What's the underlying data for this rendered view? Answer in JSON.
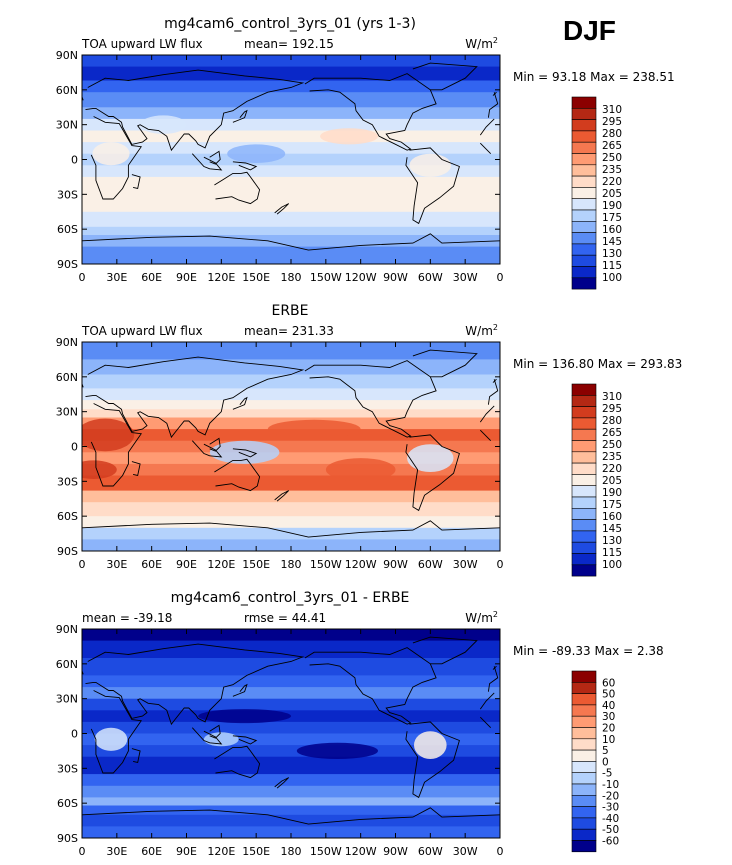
{
  "season": "DJF",
  "units_label": "W/m",
  "units_exponent": "2",
  "palette": {
    "abs": [
      "#00008b",
      "#0a28c8",
      "#1e4be1",
      "#3264f0",
      "#5a8cf5",
      "#8cb4fa",
      "#b4d2fc",
      "#d7e6fc",
      "#faf0e6",
      "#ffdcc8",
      "#ffbe9b",
      "#ff9b73",
      "#f57850",
      "#eb5a32",
      "#d23c1e",
      "#b42814",
      "#8b0000"
    ],
    "diff": [
      "#00008b",
      "#0a28c8",
      "#1e4be1",
      "#3264f0",
      "#5a8cf5",
      "#8cb4fa",
      "#b4d2fc",
      "#d7e6fc",
      "#faf0e6",
      "#ffdcc8",
      "#ffbe9b",
      "#ff9b73",
      "#f57850",
      "#eb5a32",
      "#b42814",
      "#8b0000"
    ]
  },
  "lat_ticks": [
    "90N",
    "60N",
    "30N",
    "0",
    "30S",
    "60S",
    "90S"
  ],
  "lon_ticks": [
    "0",
    "30E",
    "60E",
    "90E",
    "120E",
    "150E",
    "180",
    "150W",
    "120W",
    "90W",
    "60W",
    "30W",
    "0"
  ],
  "chart_data": [
    {
      "type": "heatmap",
      "title": "mg4cam6_control_3yrs_01 (yrs 1-3)",
      "left_label": "TOA upward LW flux",
      "stat_label": "mean= 192.15",
      "minmax_label": "Min =   93.18 Max =  238.51",
      "mean": 192.15,
      "min": 93.18,
      "max": 238.51,
      "scale": "abs",
      "colorbar_levels": [
        "310",
        "295",
        "280",
        "265",
        "250",
        "235",
        "220",
        "205",
        "190",
        "175",
        "160",
        "145",
        "130",
        "115",
        "100"
      ],
      "lat": [
        90,
        60,
        30,
        0,
        -30,
        -60,
        -90
      ],
      "lon": [
        0,
        30,
        60,
        90,
        120,
        150,
        180,
        210,
        240,
        270,
        300,
        330,
        360
      ]
    },
    {
      "type": "heatmap",
      "title": "ERBE",
      "left_label": "TOA upward LW flux",
      "stat_label": "mean= 231.33",
      "minmax_label": "Min = 136.80 Max = 293.83",
      "mean": 231.33,
      "min": 136.8,
      "max": 293.83,
      "scale": "abs",
      "colorbar_levels": [
        "310",
        "295",
        "280",
        "265",
        "250",
        "235",
        "220",
        "205",
        "190",
        "175",
        "160",
        "145",
        "130",
        "115",
        "100"
      ],
      "lat": [
        90,
        60,
        30,
        0,
        -30,
        -60,
        -90
      ],
      "lon": [
        0,
        30,
        60,
        90,
        120,
        150,
        180,
        210,
        240,
        270,
        300,
        330,
        360
      ]
    },
    {
      "type": "heatmap",
      "title": "mg4cam6_control_3yrs_01 - ERBE",
      "left_label": "mean = -39.18",
      "stat_label": "rmse =  44.41",
      "minmax_label": "Min = -89.33 Max =    2.38",
      "mean": -39.18,
      "rmse": 44.41,
      "min": -89.33,
      "max": 2.38,
      "scale": "diff",
      "colorbar_levels": [
        "60",
        "50",
        "40",
        "30",
        "20",
        "10",
        "5",
        "0",
        "-5",
        "-10",
        "-20",
        "-30",
        "-40",
        "-50",
        "-60"
      ],
      "lat": [
        90,
        60,
        30,
        0,
        -30,
        -60,
        -90
      ],
      "lon": [
        0,
        30,
        60,
        90,
        120,
        150,
        180,
        210,
        240,
        270,
        300,
        330,
        360
      ]
    }
  ]
}
